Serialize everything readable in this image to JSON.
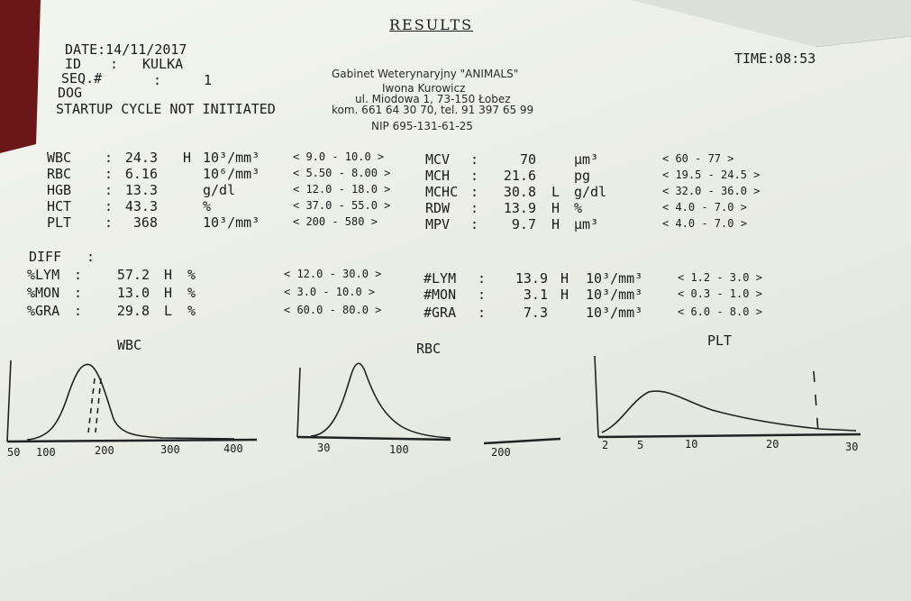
{
  "header": {
    "title": "RESULTS",
    "date": "DATE:14/11/2017",
    "time": "TIME:08:53",
    "id_label": "ID",
    "id_value": "KULKA",
    "seq_label": "SEQ.#",
    "seq_value": "1",
    "species": "DOG",
    "status": "STARTUP CYCLE NOT INITIATED"
  },
  "clinic": [
    "Gabinet Weterynaryjny \"ANIMALS\"",
    "Iwona Kurowicz",
    "ul. Miodowa 1, 73-150 Łobez",
    "kom. 661 64 30 70, tel. 91 397 65 99",
    "NIP 695-131-61-25"
  ],
  "left_params": [
    {
      "name": "WBC",
      "value": "24.3",
      "flag": "H",
      "unit": "10³/mm³",
      "range": "< 9.0 - 10.0 >"
    },
    {
      "name": "RBC",
      "value": "6.16",
      "unit": "10⁶/mm³",
      "range": "< 5.50 - 8.00 >"
    },
    {
      "name": "HGB",
      "value": "13.3",
      "unit": "g/dl",
      "range": "< 12.0 - 18.0 >"
    },
    {
      "name": "HCT",
      "value": "43.3",
      "unit": "%",
      "range": "< 37.0 - 55.0 >"
    },
    {
      "name": "PLT",
      "value": "368",
      "unit": "10³/mm³",
      "range": "< 200 - 580 >"
    }
  ],
  "right_params": [
    {
      "name": "MCV",
      "value": "70",
      "unit": "µm³",
      "range": "< 60 - 77 >"
    },
    {
      "name": "MCH",
      "value": "21.6",
      "unit": "pg",
      "range": "< 19.5 - 24.5 >"
    },
    {
      "name": "MCHC",
      "value": "30.8",
      "flag": "L",
      "unit": "g/dl",
      "range": "< 32.0 - 36.0 >"
    },
    {
      "name": "RDW",
      "value": "13.9",
      "flag": "H",
      "unit": "%",
      "range": "< 4.0 - 7.0 >"
    },
    {
      "name": "MPV",
      "value": "9.7",
      "flag": "H",
      "unit": "µm³",
      "range": "< 4.0 - 7.0 >"
    }
  ],
  "diff_label": "DIFF",
  "diff_percent": [
    {
      "name": "%LYM",
      "value": "57.2",
      "flag": "H",
      "unit": "%",
      "range": "< 12.0 - 30.0 >"
    },
    {
      "name": "%MON",
      "value": "13.0",
      "flag": "H",
      "unit": "%",
      "range": "< 3.0 - 10.0 >"
    },
    {
      "name": "%GRA",
      "value": "29.8",
      "flag": "L",
      "unit": "%",
      "range": "< 60.0 - 80.0 >"
    }
  ],
  "diff_absolute": [
    {
      "name": "#LYM",
      "value": "13.9",
      "flag": "H",
      "unit": "10³/mm³",
      "range": "< 1.2 - 3.0 >"
    },
    {
      "name": "#MON",
      "value": "3.1",
      "flag": "H",
      "unit": "10³/mm³",
      "range": "< 0.3 - 1.0 >"
    },
    {
      "name": "#GRA",
      "value": "7.3",
      "unit": "10³/mm³",
      "range": "< 6.0 - 8.0 >"
    }
  ],
  "histograms": [
    {
      "title": "WBC",
      "ticks": [
        "50",
        "100",
        "200",
        "300",
        "400"
      ]
    },
    {
      "title": "RBC",
      "ticks": [
        "30",
        "100",
        "200"
      ]
    },
    {
      "title": "PLT",
      "ticks": [
        "2",
        "5",
        "10",
        "20",
        "30"
      ]
    }
  ]
}
